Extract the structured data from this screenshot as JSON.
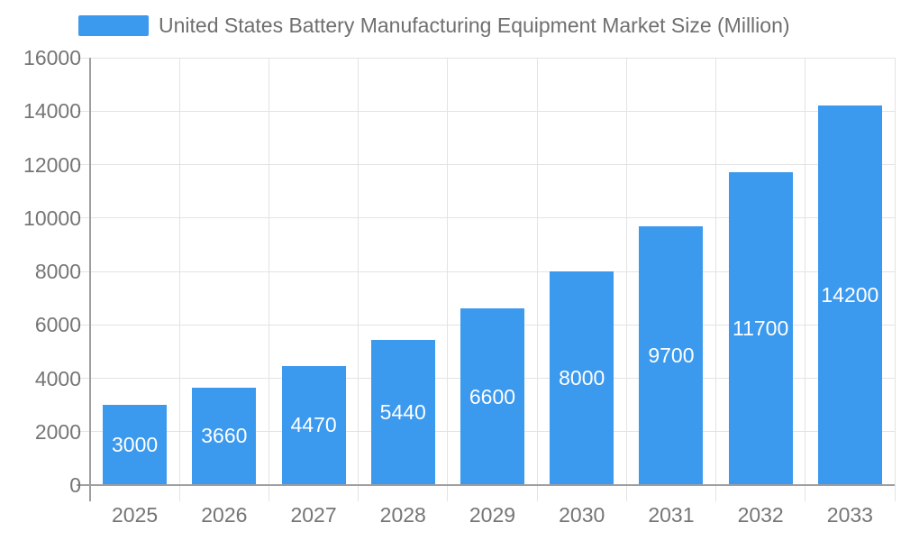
{
  "chart_data": {
    "type": "bar",
    "title": "United States Battery Manufacturing Equipment Market Size (Million)",
    "legend": {
      "position": "top",
      "entries": [
        "United States Battery Manufacturing Equipment Market Size (Million)"
      ]
    },
    "categories": [
      "2025",
      "2026",
      "2027",
      "2028",
      "2029",
      "2030",
      "2031",
      "2032",
      "2033"
    ],
    "values": [
      3000,
      3660,
      4470,
      5440,
      6600,
      8000,
      9700,
      11700,
      14200
    ],
    "data_labels": [
      "3000",
      "3660",
      "4470",
      "5440",
      "6600",
      "8000",
      "9700",
      "11700",
      "14200"
    ],
    "xlabel": "",
    "ylabel": "",
    "ylim": [
      0,
      16000
    ],
    "ytick_step": 2000,
    "ytick_labels": [
      "0",
      "2000",
      "4000",
      "6000",
      "8000",
      "10000",
      "12000",
      "14000",
      "16000"
    ],
    "grid": true,
    "colors": {
      "bar": "#3B99EE",
      "grid": "#E3E3E3",
      "axis": "#9E9E9E",
      "tick_text": "#757575",
      "title_text": "#6F6F6F",
      "bar_label_text": "#FFFFFF",
      "background": "#FFFFFF"
    }
  }
}
